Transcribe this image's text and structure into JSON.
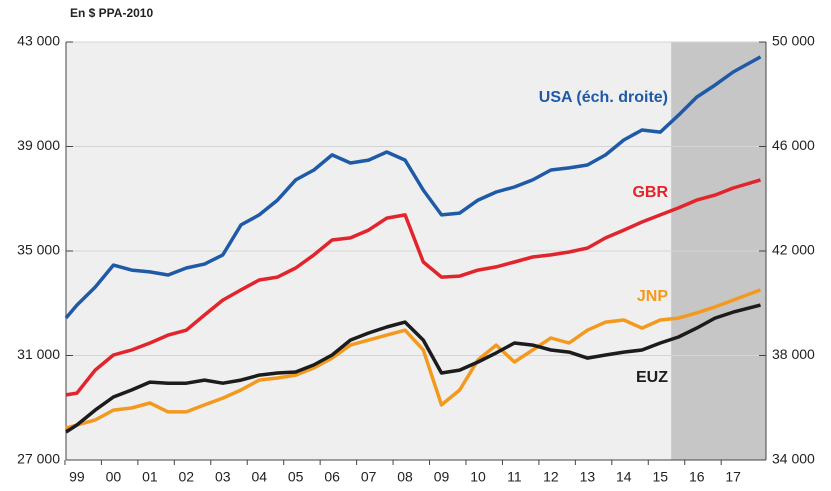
{
  "chart_data": {
    "type": "line",
    "ylabel": "En $ PPA-2010",
    "x": [
      1998.7,
      1999,
      1999.5,
      2000,
      2000.5,
      2001,
      2001.5,
      2002,
      2002.5,
      2003,
      2003.5,
      2004,
      2004.5,
      2005,
      2005.5,
      2006,
      2006.5,
      2007,
      2007.5,
      2008,
      2008.5,
      2009,
      2009.5,
      2010,
      2010.5,
      2011,
      2011.5,
      2012,
      2012.5,
      2013,
      2013.5,
      2014,
      2014.5,
      2015,
      2015.5,
      2016,
      2016.5,
      2017,
      2017.75
    ],
    "series": [
      {
        "name": "USA (éch. droite)",
        "color": "#1f5aa6",
        "axis": "y2",
        "values": [
          39435,
          39930,
          40620,
          41460,
          41270,
          41200,
          41080,
          41350,
          41500,
          41850,
          43000,
          43380,
          43950,
          44720,
          45100,
          45680,
          45370,
          45480,
          45790,
          45480,
          44330,
          43380,
          43450,
          43950,
          44260,
          44450,
          44720,
          45100,
          45180,
          45290,
          45680,
          46250,
          46630,
          46550,
          47200,
          47890,
          48350,
          48850,
          49430
        ]
      },
      {
        "name": "GBR",
        "color": "#e2242c",
        "values": [
          29490,
          29560,
          30440,
          31020,
          31210,
          31480,
          31780,
          31970,
          32550,
          33120,
          33510,
          33890,
          34000,
          34350,
          34850,
          35420,
          35500,
          35800,
          36260,
          36380,
          34580,
          34000,
          34040,
          34270,
          34390,
          34580,
          34770,
          34850,
          34960,
          35110,
          35500,
          35800,
          36110,
          36380,
          36650,
          36950,
          37140,
          37410,
          37720
        ]
      },
      {
        "name": "JNP",
        "color": "#f39a1e",
        "values": [
          28220,
          28340,
          28530,
          28910,
          28990,
          29180,
          28840,
          28840,
          29110,
          29370,
          29680,
          30060,
          30140,
          30250,
          30520,
          30900,
          31400,
          31590,
          31780,
          31970,
          31210,
          29110,
          29680,
          30830,
          31400,
          30750,
          31210,
          31670,
          31480,
          31970,
          32280,
          32360,
          32050,
          32360,
          32430,
          32630,
          32860,
          33120,
          33510
        ]
      },
      {
        "name": "EUZ",
        "color": "#1c1c1c",
        "values": [
          28070,
          28340,
          28910,
          29410,
          29680,
          29980,
          29940,
          29940,
          30060,
          29940,
          30060,
          30250,
          30330,
          30370,
          30640,
          31020,
          31590,
          31860,
          32090,
          32280,
          31590,
          30330,
          30440,
          30750,
          31100,
          31480,
          31400,
          31210,
          31130,
          30900,
          31020,
          31130,
          31210,
          31480,
          31710,
          32050,
          32430,
          32660,
          32930
        ]
      }
    ],
    "xlim": [
      1998.7,
      2017.9
    ],
    "xticks": [
      {
        "value": 1999,
        "label": "99"
      },
      {
        "value": 2000,
        "label": "00"
      },
      {
        "value": 2001,
        "label": "01"
      },
      {
        "value": 2002,
        "label": "02"
      },
      {
        "value": 2003,
        "label": "03"
      },
      {
        "value": 2004,
        "label": "04"
      },
      {
        "value": 2005,
        "label": "05"
      },
      {
        "value": 2006,
        "label": "06"
      },
      {
        "value": 2007,
        "label": "07"
      },
      {
        "value": 2008,
        "label": "08"
      },
      {
        "value": 2009,
        "label": "09"
      },
      {
        "value": 2010,
        "label": "10"
      },
      {
        "value": 2011,
        "label": "11"
      },
      {
        "value": 2012,
        "label": "12"
      },
      {
        "value": 2013,
        "label": "13"
      },
      {
        "value": 2014,
        "label": "14"
      },
      {
        "value": 2015,
        "label": "15"
      },
      {
        "value": 2016,
        "label": "16"
      },
      {
        "value": 2017,
        "label": "17"
      }
    ],
    "ylim": [
      27000,
      43000
    ],
    "yticks": [
      {
        "value": 27000,
        "label": "27 000"
      },
      {
        "value": 31000,
        "label": "31 000"
      },
      {
        "value": 35000,
        "label": "35 000"
      },
      {
        "value": 39000,
        "label": "39 000"
      },
      {
        "value": 43000,
        "label": "43 000"
      }
    ],
    "y2lim": [
      34000,
      50000
    ],
    "y2ticks": [
      {
        "value": 34000,
        "label": "34 000"
      },
      {
        "value": 38000,
        "label": "38 000"
      },
      {
        "value": 42000,
        "label": "42 000"
      },
      {
        "value": 46000,
        "label": "46 000"
      },
      {
        "value": 50000,
        "label": "50 000"
      }
    ],
    "shade_x": [
      2015.3,
      2017.9
    ],
    "grid": true
  }
}
